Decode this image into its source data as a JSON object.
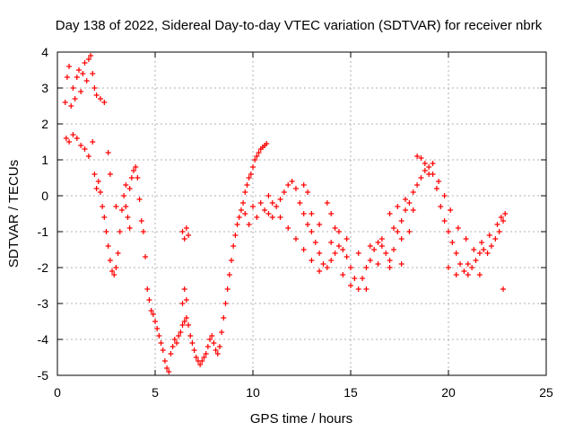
{
  "chart_data": {
    "type": "scatter",
    "title": "Day 138 of 2022, Sidereal Day-to-day VTEC variation (SDTVAR) for receiver nbrk",
    "xlabel": "GPS time / hours",
    "ylabel": "SDTVAR / TECUs",
    "xlim": [
      0,
      25
    ],
    "ylim": [
      -5,
      4
    ],
    "xticks": [
      "0",
      "5",
      "10",
      "15",
      "20",
      "25"
    ],
    "yticks": [
      "-5",
      "-4",
      "-3",
      "-2",
      "-1",
      "0",
      "1",
      "2",
      "3",
      "4"
    ],
    "grid": true,
    "marker": "plus",
    "color": "#ff0000",
    "series": [
      {
        "name": "SDTVAR",
        "points": [
          [
            0.4,
            2.6
          ],
          [
            0.5,
            3.3
          ],
          [
            0.6,
            3.6
          ],
          [
            0.7,
            2.5
          ],
          [
            0.8,
            3.0
          ],
          [
            0.9,
            2.7
          ],
          [
            1.0,
            3.3
          ],
          [
            1.1,
            3.5
          ],
          [
            1.2,
            2.9
          ],
          [
            1.3,
            3.4
          ],
          [
            1.4,
            3.7
          ],
          [
            1.5,
            3.2
          ],
          [
            1.6,
            3.8
          ],
          [
            1.7,
            3.9
          ],
          [
            1.8,
            3.4
          ],
          [
            1.9,
            3.0
          ],
          [
            2.0,
            2.8
          ],
          [
            2.2,
            2.7
          ],
          [
            2.4,
            2.6
          ],
          [
            0.45,
            1.6
          ],
          [
            0.6,
            1.5
          ],
          [
            0.8,
            1.7
          ],
          [
            1.0,
            1.6
          ],
          [
            1.2,
            1.4
          ],
          [
            1.4,
            1.3
          ],
          [
            1.6,
            1.1
          ],
          [
            1.8,
            1.5
          ],
          [
            1.9,
            0.6
          ],
          [
            2.0,
            0.2
          ],
          [
            2.1,
            0.4
          ],
          [
            2.2,
            0.1
          ],
          [
            2.3,
            -0.3
          ],
          [
            2.4,
            -0.6
          ],
          [
            2.5,
            -1.0
          ],
          [
            2.6,
            -1.4
          ],
          [
            2.7,
            -1.8
          ],
          [
            2.8,
            -2.1
          ],
          [
            2.9,
            -2.2
          ],
          [
            3.0,
            -2.0
          ],
          [
            3.1,
            -1.6
          ],
          [
            3.2,
            -1.0
          ],
          [
            3.3,
            -0.4
          ],
          [
            3.4,
            0.0
          ],
          [
            3.5,
            -0.3
          ],
          [
            3.6,
            -0.6
          ],
          [
            3.7,
            -0.9
          ],
          [
            3.8,
            0.5
          ],
          [
            3.9,
            0.7
          ],
          [
            4.0,
            0.8
          ],
          [
            4.1,
            0.5
          ],
          [
            4.2,
            -0.1
          ],
          [
            4.3,
            -0.7
          ],
          [
            4.4,
            -1.0
          ],
          [
            4.5,
            -1.7
          ],
          [
            2.6,
            1.2
          ],
          [
            2.7,
            0.6
          ],
          [
            3.0,
            -0.3
          ],
          [
            3.5,
            0.3
          ],
          [
            3.7,
            0.2
          ],
          [
            4.6,
            -2.6
          ],
          [
            4.7,
            -2.9
          ],
          [
            4.8,
            -3.2
          ],
          [
            4.9,
            -3.3
          ],
          [
            5.0,
            -3.5
          ],
          [
            5.1,
            -3.7
          ],
          [
            5.2,
            -3.9
          ],
          [
            5.3,
            -4.1
          ],
          [
            5.4,
            -4.3
          ],
          [
            5.5,
            -4.6
          ],
          [
            5.6,
            -4.8
          ],
          [
            5.7,
            -4.9
          ],
          [
            5.8,
            -4.4
          ],
          [
            5.9,
            -4.2
          ],
          [
            6.0,
            -4.0
          ],
          [
            6.1,
            -4.1
          ],
          [
            6.2,
            -3.9
          ],
          [
            6.3,
            -3.8
          ],
          [
            6.4,
            -3.6
          ],
          [
            6.5,
            -3.5
          ],
          [
            6.6,
            -3.4
          ],
          [
            6.7,
            -3.6
          ],
          [
            6.8,
            -3.9
          ],
          [
            6.9,
            -4.1
          ],
          [
            7.0,
            -4.3
          ],
          [
            7.1,
            -4.5
          ],
          [
            7.2,
            -4.6
          ],
          [
            7.3,
            -4.7
          ],
          [
            7.4,
            -4.6
          ],
          [
            7.5,
            -4.5
          ],
          [
            7.6,
            -4.4
          ],
          [
            7.7,
            -4.2
          ],
          [
            7.8,
            -4.0
          ],
          [
            7.9,
            -3.9
          ],
          [
            8.0,
            -4.1
          ],
          [
            8.1,
            -4.3
          ],
          [
            8.2,
            -4.4
          ],
          [
            8.3,
            -4.2
          ],
          [
            8.4,
            -3.8
          ],
          [
            8.5,
            -3.4
          ],
          [
            8.6,
            -3.0
          ],
          [
            8.7,
            -2.6
          ],
          [
            8.8,
            -2.2
          ],
          [
            8.9,
            -1.8
          ],
          [
            9.0,
            -1.4
          ],
          [
            9.1,
            -1.1
          ],
          [
            9.2,
            -0.8
          ],
          [
            9.3,
            -0.6
          ],
          [
            9.4,
            -0.4
          ],
          [
            9.5,
            -0.2
          ],
          [
            9.6,
            0.1
          ],
          [
            9.7,
            0.3
          ],
          [
            9.8,
            0.5
          ],
          [
            9.9,
            0.6
          ],
          [
            10.0,
            0.8
          ],
          [
            10.1,
            1.0
          ],
          [
            10.2,
            1.1
          ],
          [
            10.3,
            1.2
          ],
          [
            10.4,
            1.3
          ],
          [
            10.5,
            1.35
          ],
          [
            10.6,
            1.4
          ],
          [
            10.7,
            1.45
          ],
          [
            6.4,
            -1.0
          ],
          [
            6.5,
            -1.2
          ],
          [
            6.6,
            -0.9
          ],
          [
            6.7,
            -1.1
          ],
          [
            6.5,
            -2.6
          ],
          [
            6.6,
            -2.9
          ],
          [
            6.4,
            -3.0
          ],
          [
            9.6,
            -0.5
          ],
          [
            9.8,
            -0.8
          ],
          [
            10.0,
            -0.3
          ],
          [
            10.2,
            -0.6
          ],
          [
            10.4,
            -0.2
          ],
          [
            10.6,
            -0.4
          ],
          [
            10.8,
            -0.5
          ],
          [
            11.0,
            -0.6
          ],
          [
            11.2,
            -0.3
          ],
          [
            11.4,
            -0.1
          ],
          [
            11.6,
            0.1
          ],
          [
            11.8,
            0.3
          ],
          [
            12.0,
            0.4
          ],
          [
            12.2,
            0.2
          ],
          [
            12.4,
            -0.2
          ],
          [
            12.6,
            -0.5
          ],
          [
            12.8,
            -0.8
          ],
          [
            13.0,
            -1.0
          ],
          [
            13.2,
            -1.3
          ],
          [
            13.4,
            -1.6
          ],
          [
            13.6,
            -1.9
          ],
          [
            13.8,
            -2.0
          ],
          [
            14.0,
            -1.8
          ],
          [
            14.2,
            -1.6
          ],
          [
            14.4,
            -1.4
          ],
          [
            14.6,
            -1.5
          ],
          [
            14.8,
            -1.7
          ],
          [
            15.0,
            -2.0
          ],
          [
            15.2,
            -2.3
          ],
          [
            15.4,
            -2.6
          ],
          [
            15.6,
            -2.3
          ],
          [
            15.8,
            -2.0
          ],
          [
            16.0,
            -1.8
          ],
          [
            16.2,
            -1.5
          ],
          [
            16.4,
            -1.3
          ],
          [
            16.6,
            -1.4
          ],
          [
            16.8,
            -1.6
          ],
          [
            17.0,
            -1.8
          ],
          [
            17.2,
            -1.5
          ],
          [
            17.4,
            -1.0
          ],
          [
            17.6,
            -0.7
          ],
          [
            17.8,
            -0.4
          ],
          [
            18.0,
            -0.2
          ],
          [
            18.2,
            0.1
          ],
          [
            18.4,
            0.3
          ],
          [
            18.6,
            0.5
          ],
          [
            18.8,
            0.7
          ],
          [
            19.0,
            0.8
          ],
          [
            19.2,
            0.6
          ],
          [
            19.4,
            0.2
          ],
          [
            19.6,
            -0.3
          ],
          [
            19.8,
            -0.7
          ],
          [
            20.0,
            -1.0
          ],
          [
            20.2,
            -1.3
          ],
          [
            20.4,
            -1.6
          ],
          [
            20.6,
            -1.9
          ],
          [
            20.8,
            -2.1
          ],
          [
            21.0,
            -2.2
          ],
          [
            21.2,
            -2.0
          ],
          [
            21.4,
            -1.8
          ],
          [
            21.6,
            -1.6
          ],
          [
            21.8,
            -1.5
          ],
          [
            22.0,
            -1.6
          ],
          [
            22.2,
            -1.4
          ],
          [
            22.4,
            -1.2
          ],
          [
            22.6,
            -1.0
          ],
          [
            22.8,
            -0.7
          ],
          [
            22.9,
            -0.5
          ],
          [
            22.8,
            -2.6
          ],
          [
            10.8,
            0.0
          ],
          [
            11.0,
            -0.2
          ],
          [
            11.4,
            -0.6
          ],
          [
            11.8,
            -0.9
          ],
          [
            12.2,
            -1.2
          ],
          [
            12.6,
            -1.5
          ],
          [
            13.0,
            -1.8
          ],
          [
            13.4,
            -2.1
          ],
          [
            12.6,
            0.3
          ],
          [
            12.8,
            0.1
          ],
          [
            13.0,
            -0.5
          ],
          [
            13.4,
            -0.8
          ],
          [
            13.8,
            -0.2
          ],
          [
            14.0,
            -0.5
          ],
          [
            14.2,
            -0.9
          ],
          [
            14.4,
            -1.0
          ],
          [
            14.8,
            -1.2
          ],
          [
            15.4,
            -1.6
          ],
          [
            16.0,
            -1.4
          ],
          [
            16.6,
            -1.2
          ],
          [
            17.2,
            -0.9
          ],
          [
            17.6,
            -1.2
          ],
          [
            18.0,
            -1.0
          ],
          [
            18.4,
            1.1
          ],
          [
            18.6,
            1.05
          ],
          [
            18.8,
            0.9
          ],
          [
            19.0,
            0.6
          ],
          [
            19.2,
            0.9
          ],
          [
            19.5,
            0.4
          ],
          [
            19.8,
            0.0
          ],
          [
            20.1,
            -0.4
          ],
          [
            20.5,
            -0.9
          ],
          [
            20.9,
            -1.2
          ],
          [
            21.3,
            -1.5
          ],
          [
            21.7,
            -1.3
          ],
          [
            22.1,
            -1.1
          ],
          [
            22.5,
            -0.8
          ],
          [
            22.7,
            -0.6
          ],
          [
            17.0,
            -0.5
          ],
          [
            17.4,
            -0.3
          ],
          [
            17.8,
            -0.1
          ],
          [
            18.2,
            -0.4
          ],
          [
            20.0,
            -2.0
          ],
          [
            20.4,
            -2.2
          ],
          [
            21.0,
            -1.9
          ],
          [
            21.6,
            -2.2
          ],
          [
            14.0,
            -1.3
          ],
          [
            14.6,
            -2.2
          ],
          [
            15.0,
            -2.5
          ],
          [
            15.8,
            -2.6
          ],
          [
            16.4,
            -1.9
          ],
          [
            17.0,
            -2.0
          ],
          [
            17.6,
            -1.9
          ]
        ]
      }
    ]
  }
}
